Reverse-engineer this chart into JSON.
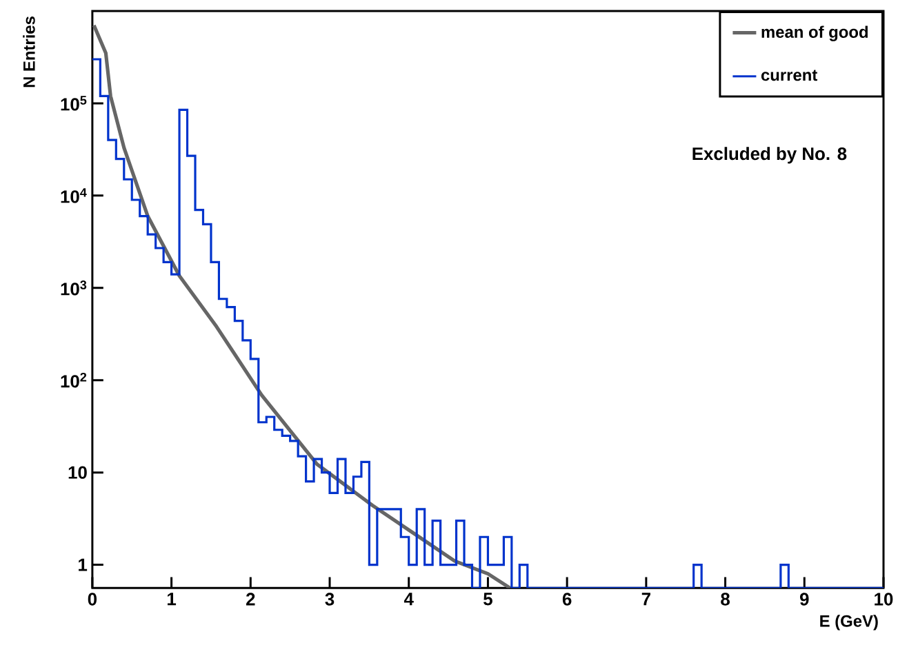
{
  "chart_data": {
    "type": "line",
    "xlabel": "E (GeV)",
    "ylabel": "N Entries",
    "annotations": [
      "Excluded by No. 8"
    ],
    "xlim": [
      0,
      10
    ],
    "xticks": [
      0,
      1,
      2,
      3,
      4,
      5,
      6,
      7,
      8,
      9,
      10
    ],
    "ylim": [
      0.56,
      1000000
    ],
    "log": true,
    "yticks": [
      1,
      10,
      {
        "value": 100,
        "label": "10$^{2}$"
      },
      {
        "value": 1000,
        "label": "10$^{3}$"
      },
      {
        "value": 10000,
        "label": "10$^{4}$"
      },
      {
        "value": 100000,
        "label": "10$^{5}$"
      }
    ],
    "legend": "top right",
    "series": [
      {
        "name": "mean of good",
        "color": "#666666",
        "x": [
          0.02,
          0.17,
          0.23,
          0.4,
          0.7,
          1.1,
          1.57,
          2.14,
          2.84,
          3.54,
          4.06,
          4.58,
          5.0,
          5.28
        ],
        "values": [
          700000,
          350000,
          120000,
          33000,
          6000,
          1350,
          380,
          69,
          12.3,
          4.4,
          2.2,
          1.1,
          0.8,
          0.56
        ]
      },
      {
        "name": "current",
        "type": "histogram",
        "color": "#0033cc",
        "bins": [
          0,
          0.1,
          0.2,
          0.3,
          0.4,
          0.5,
          0.6,
          0.7,
          0.8,
          0.9,
          1,
          1.1,
          1.2,
          1.3,
          1.4,
          1.5,
          1.6,
          1.7,
          1.8,
          1.9,
          2,
          2.1,
          2.2,
          2.3,
          2.4,
          2.5,
          2.6,
          2.7,
          2.8,
          2.9,
          3,
          3.1,
          3.2,
          3.3,
          3.4,
          3.5,
          3.6,
          3.7,
          3.8,
          3.9,
          4,
          4.1,
          4.2,
          4.3,
          4.4,
          4.5,
          4.6,
          4.7,
          4.8,
          4.9,
          5,
          5.1,
          5.2,
          5.3,
          5.4,
          5.5,
          5.6,
          5.7,
          5.8,
          5.9,
          6,
          6.1,
          6.2,
          6.3,
          6.4,
          6.5,
          6.6,
          6.7,
          6.8,
          6.9,
          7,
          7.1,
          7.2,
          7.3,
          7.4,
          7.5,
          7.6,
          7.7,
          7.8,
          7.9,
          8,
          8.1,
          8.2,
          8.3,
          8.4,
          8.5,
          8.6,
          8.7,
          8.8,
          8.9,
          9,
          9.1,
          9.2,
          9.3,
          9.4,
          9.5,
          9.6,
          9.7,
          9.8,
          9.9,
          10
        ],
        "values": [
          300000,
          120000,
          40000,
          25000,
          15000,
          9000,
          6000,
          3800,
          2700,
          1900,
          1400,
          85000,
          27000,
          7000,
          4900,
          1900,
          760,
          620,
          440,
          270,
          170,
          35,
          40,
          29,
          25,
          22,
          15,
          8,
          14,
          10,
          6,
          14,
          6,
          9,
          13,
          1,
          4,
          4,
          4,
          2,
          1,
          4,
          1,
          3,
          1,
          1,
          3,
          1,
          null,
          2,
          1,
          1,
          2,
          null,
          1,
          null,
          null,
          null,
          null,
          null,
          null,
          null,
          null,
          null,
          null,
          null,
          null,
          null,
          null,
          null,
          null,
          null,
          null,
          null,
          null,
          null,
          1,
          null,
          null,
          null,
          null,
          null,
          null,
          null,
          null,
          null,
          null,
          1,
          null,
          null,
          null,
          null,
          null,
          null,
          null,
          null,
          null,
          null,
          null,
          null
        ]
      }
    ]
  }
}
